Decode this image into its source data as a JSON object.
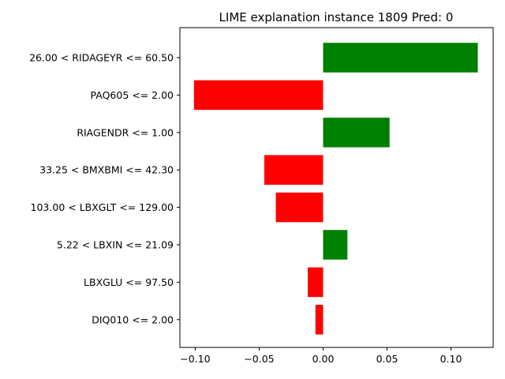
{
  "chart_data": {
    "type": "bar",
    "orientation": "horizontal",
    "title": "LIME explanation instance 1809 Pred: 0",
    "xlabel": "",
    "ylabel": "",
    "categories": [
      "26.00 < RIDAGEYR <= 60.50",
      "PAQ605 <= 2.00",
      "RIAGENDR <= 1.00",
      "33.25 < BMXBMI <= 42.30",
      "103.00 < LBXGLT <= 129.00",
      "5.22 < LBXIN <= 21.09",
      "LBXGLU <= 97.50",
      "DIQ010 <= 2.00"
    ],
    "values": [
      0.121,
      -0.101,
      0.052,
      -0.046,
      -0.037,
      0.019,
      -0.012,
      -0.006
    ],
    "xlim": [
      -0.112,
      0.133
    ],
    "xticks": [
      -0.1,
      -0.05,
      0.0,
      0.05,
      0.1
    ],
    "xtick_labels": [
      "−0.10",
      "−0.05",
      "0.00",
      "0.05",
      "0.10"
    ],
    "colors": {
      "positive": "#008000",
      "negative": "#ff0000"
    },
    "grid": false,
    "legend": "none"
  }
}
